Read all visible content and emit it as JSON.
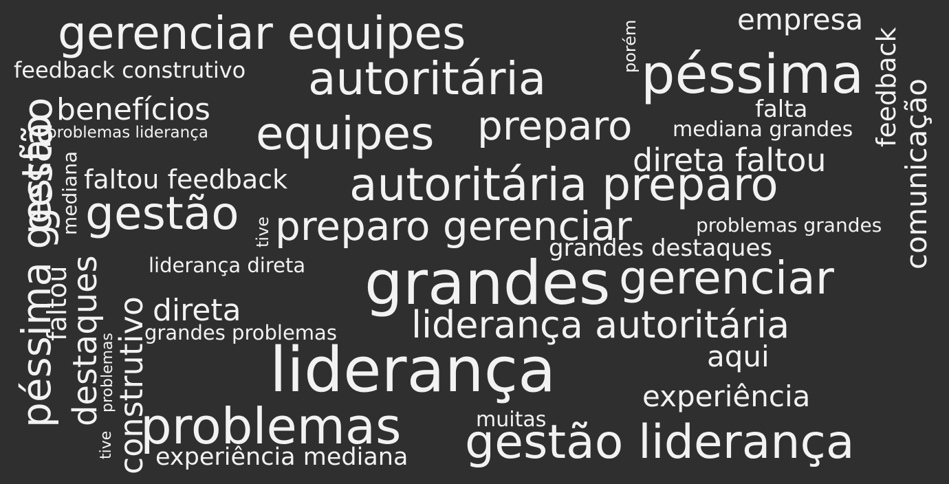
{
  "words": [
    {
      "text": "gerenciar equipes"
    },
    {
      "text": "empresa"
    },
    {
      "text": "porém"
    },
    {
      "text": "feedback construtivo"
    },
    {
      "text": "autoritária"
    },
    {
      "text": "péssima"
    },
    {
      "text": "feedback"
    },
    {
      "text": "comunicação"
    },
    {
      "text": "benefícios"
    },
    {
      "text": "falta"
    },
    {
      "text": "gestão"
    },
    {
      "text": "péssima gestão"
    },
    {
      "text": "problemas liderança"
    },
    {
      "text": "mediana grandes"
    },
    {
      "text": "equipes"
    },
    {
      "text": "preparo"
    },
    {
      "text": "direta faltou"
    },
    {
      "text": "faltou feedback"
    },
    {
      "text": "autoritária preparo"
    },
    {
      "text": "mediana"
    },
    {
      "text": "gestão"
    },
    {
      "text": "tive"
    },
    {
      "text": "preparo gerenciar"
    },
    {
      "text": "problemas grandes"
    },
    {
      "text": "grandes destaques"
    },
    {
      "text": "faltou"
    },
    {
      "text": "destaques"
    },
    {
      "text": "construtivo"
    },
    {
      "text": "liderança direta"
    },
    {
      "text": "grandes"
    },
    {
      "text": "gerenciar"
    },
    {
      "text": "direta"
    },
    {
      "text": "problemas"
    },
    {
      "text": "liderança autoritária"
    },
    {
      "text": "grandes problemas"
    },
    {
      "text": "aqui"
    },
    {
      "text": "tive"
    },
    {
      "text": "liderança"
    },
    {
      "text": "experiência"
    },
    {
      "text": "muitas"
    },
    {
      "text": "problemas"
    },
    {
      "text": "gestão liderança"
    },
    {
      "text": "experiência mediana"
    }
  ]
}
